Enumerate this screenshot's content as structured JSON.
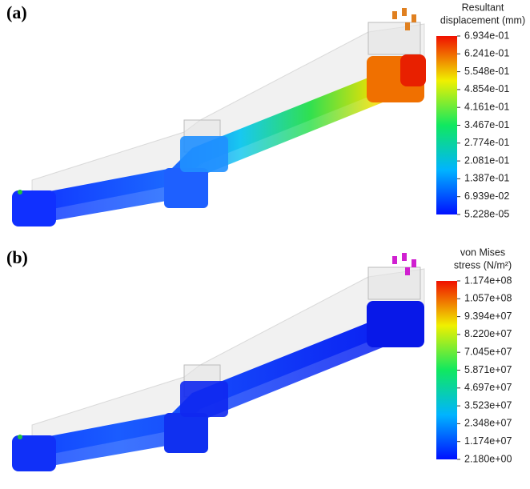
{
  "panels": [
    {
      "label": "(a)",
      "legend_title": [
        "Resultant",
        "displacement (mm)"
      ],
      "ticks": [
        "6.934e-01",
        "6.241e-01",
        "5.548e-01",
        "4.854e-01",
        "4.161e-01",
        "3.467e-01",
        "2.774e-01",
        "2.081e-01",
        "1.387e-01",
        "6.939e-02",
        "5.228e-05"
      ]
    },
    {
      "label": "(b)",
      "legend_title": [
        "von Mises",
        "stress (N/m²)"
      ],
      "ticks": [
        "1.174e+08",
        "1.057e+08",
        "9.394e+07",
        "8.220e+07",
        "7.045e+07",
        "5.871e+07",
        "4.697e+07",
        "3.523e+07",
        "2.348e+07",
        "1.174e+07",
        "2.180e+00"
      ]
    }
  ]
}
